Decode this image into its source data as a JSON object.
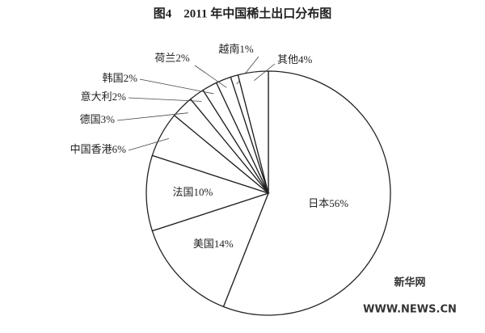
{
  "chart_data": {
    "type": "pie",
    "title": "图4　2011 年中国稀土出口分布图",
    "categories": [
      "日本",
      "美国",
      "法国",
      "中国香港",
      "德国",
      "意大利",
      "韩国",
      "荷兰",
      "越南",
      "其他"
    ],
    "values": [
      56,
      14,
      10,
      6,
      3,
      2,
      2,
      2,
      1,
      4
    ],
    "value_labels": [
      "56%",
      "14%",
      "10%",
      "6%",
      "3%",
      "2%",
      "2%",
      "2%",
      "1%",
      "4%"
    ],
    "color": "#ffffff"
  },
  "watermark": {
    "name": "新华网",
    "url": "WWW.NEWS.CN"
  }
}
